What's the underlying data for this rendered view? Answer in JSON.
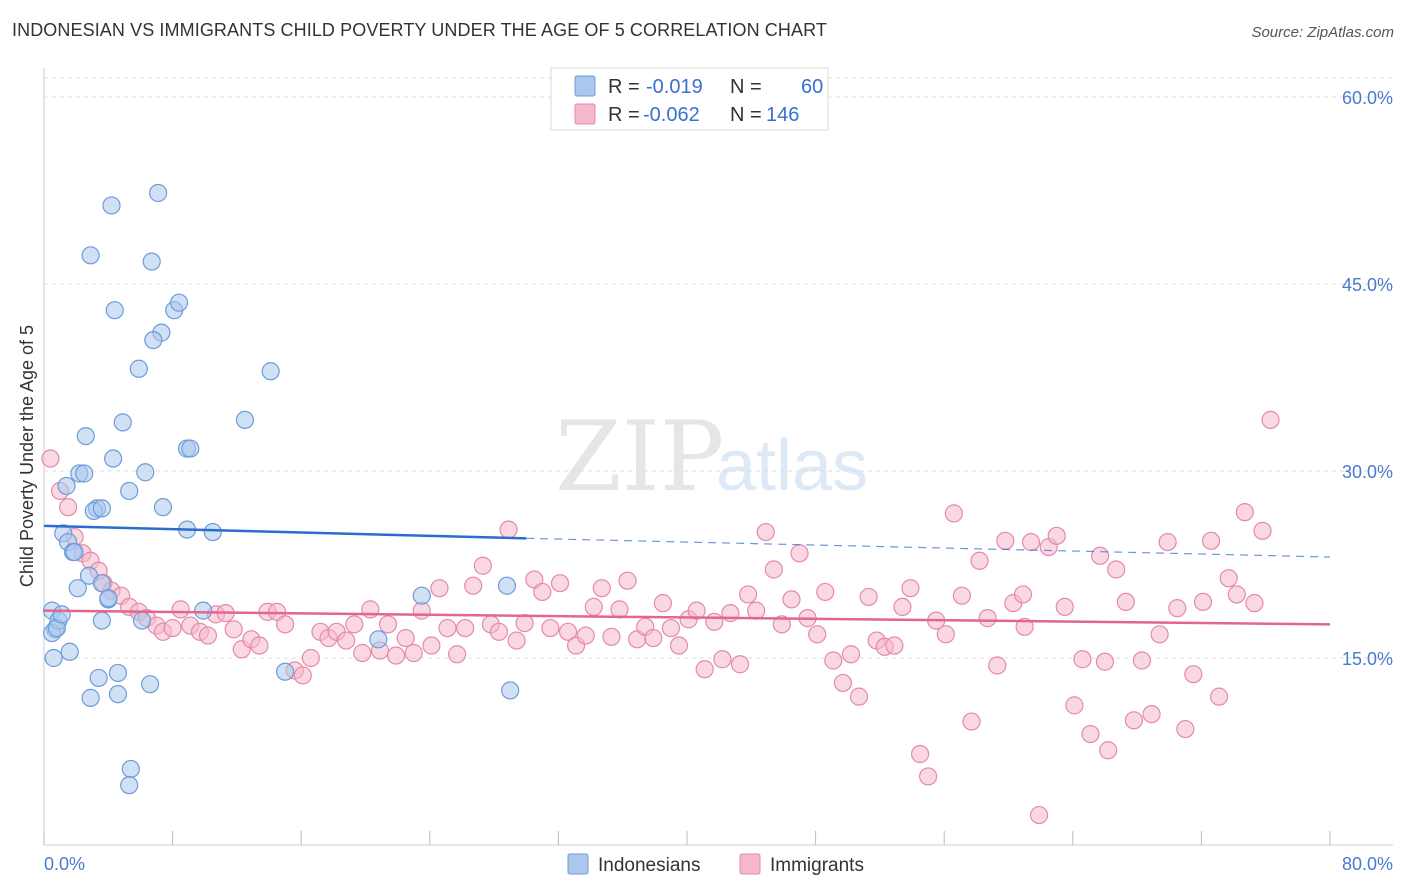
{
  "title": "INDONESIAN VS IMMIGRANTS CHILD POVERTY UNDER THE AGE OF 5 CORRELATION CHART",
  "source": "Source: ZipAtlas.com",
  "watermark": {
    "zip": "ZIP",
    "atlas": "atlas"
  },
  "colors": {
    "indonesians_fill": "#aac8ee",
    "indonesians_stroke": "#6f9bd8",
    "indonesians_line": "#2a6ccf",
    "immigrants_fill": "#f5b8cc",
    "immigrants_stroke": "#e48aa8",
    "immigrants_line": "#e2668f",
    "tick_text": "#4a7ad0",
    "grid": "#dddddd"
  },
  "legend_top": {
    "rows": [
      {
        "r_label": "R =",
        "r_value": "-0.019",
        "n_label": "N =",
        "n_value": "60",
        "series": "Indonesians"
      },
      {
        "r_label": "R =",
        "r_value": "-0.062",
        "n_label": "N =",
        "n_value": "146",
        "series": "Immigrants"
      }
    ]
  },
  "legend_bottom": {
    "items": [
      "Indonesians",
      "Immigrants"
    ]
  },
  "chart_data": {
    "type": "scatter",
    "title": "INDONESIAN VS IMMIGRANTS CHILD POVERTY UNDER THE AGE OF 5 CORRELATION CHART",
    "xlabel": "",
    "ylabel": "Child Poverty Under the Age of 5",
    "xlim": [
      0,
      80
    ],
    "ylim": [
      0,
      60
    ],
    "x_tick_labels": [
      "0.0%",
      "80.0%"
    ],
    "y_ticks": [
      15,
      30,
      45,
      60
    ],
    "y_tick_labels": [
      "15.0%",
      "30.0%",
      "45.0%",
      "60.0%"
    ],
    "grid": true,
    "series": [
      {
        "name": "Indonesians",
        "r": -0.019,
        "n": 60,
        "trend": {
          "x_start": 0,
          "y_start": 25.6,
          "x_solid_end": 30,
          "y_solid_end": 24.6,
          "x_end": 80,
          "y_end": 23.1
        },
        "points": [
          [
            0.5,
            18.8
          ],
          [
            0.7,
            17.3
          ],
          [
            0.5,
            17.0
          ],
          [
            0.9,
            18.0
          ],
          [
            0.8,
            17.4
          ],
          [
            1.1,
            18.5
          ],
          [
            0.6,
            15.0
          ],
          [
            1.6,
            15.5
          ],
          [
            1.2,
            25.0
          ],
          [
            1.5,
            24.3
          ],
          [
            1.8,
            23.5
          ],
          [
            1.9,
            23.5
          ],
          [
            1.4,
            28.8
          ],
          [
            2.2,
            29.8
          ],
          [
            2.5,
            29.8
          ],
          [
            2.1,
            20.6
          ],
          [
            2.8,
            21.6
          ],
          [
            3.3,
            27.0
          ],
          [
            3.1,
            26.8
          ],
          [
            3.6,
            27.0
          ],
          [
            2.6,
            32.8
          ],
          [
            3.6,
            21.0
          ],
          [
            4.0,
            19.7
          ],
          [
            3.6,
            18.0
          ],
          [
            4.3,
            31.0
          ],
          [
            4.9,
            33.9
          ],
          [
            5.3,
            28.4
          ],
          [
            5.9,
            38.2
          ],
          [
            6.3,
            29.9
          ],
          [
            6.1,
            18.0
          ],
          [
            3.4,
            13.4
          ],
          [
            4.6,
            13.8
          ],
          [
            2.9,
            11.8
          ],
          [
            4.6,
            12.1
          ],
          [
            6.6,
            12.9
          ],
          [
            5.4,
            6.1
          ],
          [
            5.3,
            4.8
          ],
          [
            4.2,
            51.3
          ],
          [
            2.9,
            47.3
          ],
          [
            6.7,
            46.8
          ],
          [
            7.1,
            52.3
          ],
          [
            4.4,
            42.9
          ],
          [
            8.1,
            42.9
          ],
          [
            8.4,
            43.5
          ],
          [
            7.3,
            41.1
          ],
          [
            6.8,
            40.5
          ],
          [
            8.9,
            31.8
          ],
          [
            9.1,
            31.8
          ],
          [
            7.4,
            27.1
          ],
          [
            8.9,
            25.3
          ],
          [
            10.5,
            25.1
          ],
          [
            12.5,
            34.1
          ],
          [
            14.1,
            38.0
          ],
          [
            9.9,
            18.8
          ],
          [
            15.0,
            13.9
          ],
          [
            20.8,
            16.5
          ],
          [
            23.5,
            20.0
          ],
          [
            28.8,
            20.8
          ],
          [
            29.0,
            12.4
          ],
          [
            4.0,
            19.8
          ]
        ]
      },
      {
        "name": "Immigrants",
        "r": -0.062,
        "n": 146,
        "trend": {
          "x_start": 0,
          "y_start": 18.8,
          "x_end": 80,
          "y_end": 17.7
        },
        "points": [
          [
            0.4,
            31.0
          ],
          [
            1.0,
            28.4
          ],
          [
            1.5,
            27.1
          ],
          [
            1.9,
            24.7
          ],
          [
            2.4,
            23.4
          ],
          [
            2.9,
            22.8
          ],
          [
            3.4,
            22.0
          ],
          [
            3.7,
            21.0
          ],
          [
            4.2,
            20.4
          ],
          [
            4.8,
            20.0
          ],
          [
            5.3,
            19.1
          ],
          [
            5.9,
            18.7
          ],
          [
            6.4,
            18.2
          ],
          [
            7.0,
            17.6
          ],
          [
            7.4,
            17.1
          ],
          [
            8.0,
            17.4
          ],
          [
            8.5,
            18.9
          ],
          [
            9.1,
            17.6
          ],
          [
            9.7,
            17.1
          ],
          [
            10.2,
            16.8
          ],
          [
            10.7,
            18.5
          ],
          [
            11.3,
            18.6
          ],
          [
            11.8,
            17.3
          ],
          [
            12.3,
            15.7
          ],
          [
            12.9,
            16.5
          ],
          [
            13.4,
            16.0
          ],
          [
            13.9,
            18.7
          ],
          [
            14.5,
            18.7
          ],
          [
            15.0,
            17.7
          ],
          [
            15.6,
            14.0
          ],
          [
            16.1,
            13.6
          ],
          [
            16.6,
            15.0
          ],
          [
            17.2,
            17.1
          ],
          [
            17.7,
            16.6
          ],
          [
            18.2,
            17.1
          ],
          [
            18.8,
            16.4
          ],
          [
            19.3,
            17.7
          ],
          [
            19.8,
            15.4
          ],
          [
            20.3,
            18.9
          ],
          [
            20.9,
            15.6
          ],
          [
            21.4,
            17.7
          ],
          [
            21.9,
            15.2
          ],
          [
            22.5,
            16.6
          ],
          [
            23.0,
            15.4
          ],
          [
            23.5,
            18.8
          ],
          [
            24.1,
            16.0
          ],
          [
            24.6,
            20.6
          ],
          [
            25.1,
            17.4
          ],
          [
            25.7,
            15.3
          ],
          [
            26.2,
            17.4
          ],
          [
            26.7,
            20.8
          ],
          [
            27.3,
            22.4
          ],
          [
            27.8,
            17.7
          ],
          [
            28.3,
            17.1
          ],
          [
            28.9,
            25.3
          ],
          [
            29.4,
            16.4
          ],
          [
            29.9,
            17.8
          ],
          [
            30.5,
            21.3
          ],
          [
            31.0,
            20.3
          ],
          [
            31.5,
            17.4
          ],
          [
            32.1,
            21.0
          ],
          [
            32.6,
            17.1
          ],
          [
            33.1,
            16.0
          ],
          [
            33.7,
            16.8
          ],
          [
            34.2,
            19.1
          ],
          [
            34.7,
            20.6
          ],
          [
            35.3,
            16.7
          ],
          [
            35.8,
            18.9
          ],
          [
            36.3,
            21.2
          ],
          [
            36.9,
            16.5
          ],
          [
            37.4,
            17.5
          ],
          [
            37.9,
            16.6
          ],
          [
            38.5,
            19.4
          ],
          [
            39.0,
            17.4
          ],
          [
            39.5,
            16.0
          ],
          [
            40.1,
            18.1
          ],
          [
            40.6,
            18.8
          ],
          [
            41.1,
            14.1
          ],
          [
            41.7,
            17.9
          ],
          [
            42.2,
            14.9
          ],
          [
            42.7,
            18.6
          ],
          [
            43.3,
            14.5
          ],
          [
            43.8,
            20.1
          ],
          [
            44.3,
            18.8
          ],
          [
            44.9,
            25.1
          ],
          [
            45.4,
            22.1
          ],
          [
            45.9,
            17.7
          ],
          [
            46.5,
            19.7
          ],
          [
            47.0,
            23.4
          ],
          [
            47.5,
            18.2
          ],
          [
            48.1,
            16.9
          ],
          [
            48.6,
            20.3
          ],
          [
            49.1,
            14.8
          ],
          [
            49.7,
            13.0
          ],
          [
            50.2,
            15.3
          ],
          [
            50.7,
            11.9
          ],
          [
            51.3,
            19.9
          ],
          [
            51.8,
            16.4
          ],
          [
            52.3,
            15.9
          ],
          [
            52.9,
            16.0
          ],
          [
            53.4,
            19.1
          ],
          [
            53.9,
            20.6
          ],
          [
            54.5,
            7.3
          ],
          [
            55.0,
            5.5
          ],
          [
            55.5,
            18.0
          ],
          [
            56.1,
            16.9
          ],
          [
            56.6,
            26.6
          ],
          [
            57.1,
            20.0
          ],
          [
            57.7,
            9.9
          ],
          [
            58.2,
            22.8
          ],
          [
            58.7,
            18.2
          ],
          [
            59.3,
            14.4
          ],
          [
            59.8,
            24.4
          ],
          [
            60.3,
            19.4
          ],
          [
            60.9,
            20.1
          ],
          [
            61.4,
            24.3
          ],
          [
            61.9,
            2.4
          ],
          [
            62.5,
            23.9
          ],
          [
            63.0,
            24.8
          ],
          [
            63.5,
            19.1
          ],
          [
            64.1,
            11.2
          ],
          [
            64.6,
            14.9
          ],
          [
            65.1,
            8.9
          ],
          [
            65.7,
            23.2
          ],
          [
            66.2,
            7.6
          ],
          [
            66.7,
            22.1
          ],
          [
            67.3,
            19.5
          ],
          [
            67.8,
            10.0
          ],
          [
            68.3,
            14.8
          ],
          [
            68.9,
            10.5
          ],
          [
            69.4,
            16.9
          ],
          [
            69.9,
            24.3
          ],
          [
            70.5,
            19.0
          ],
          [
            71.0,
            9.3
          ],
          [
            71.5,
            13.7
          ],
          [
            72.1,
            19.5
          ],
          [
            72.6,
            24.4
          ],
          [
            73.1,
            11.9
          ],
          [
            73.7,
            21.4
          ],
          [
            74.2,
            20.1
          ],
          [
            74.7,
            26.7
          ],
          [
            75.3,
            19.4
          ],
          [
            75.8,
            25.2
          ],
          [
            76.3,
            34.1
          ],
          [
            66.0,
            14.7
          ],
          [
            61.0,
            17.5
          ]
        ]
      }
    ]
  }
}
